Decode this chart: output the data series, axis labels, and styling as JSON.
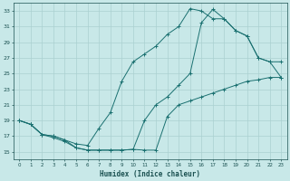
{
  "xlabel": "Humidex (Indice chaleur)",
  "xlim": [
    -0.5,
    23.5
  ],
  "ylim": [
    14.0,
    34.0
  ],
  "xticks": [
    0,
    1,
    2,
    3,
    4,
    5,
    6,
    7,
    8,
    9,
    10,
    11,
    12,
    13,
    14,
    15,
    16,
    17,
    18,
    19,
    20,
    21,
    22,
    23
  ],
  "yticks": [
    15,
    17,
    19,
    21,
    23,
    25,
    27,
    29,
    31,
    33
  ],
  "bg_color": "#c8e8e8",
  "grid_color": "#aad0d0",
  "line_color": "#1a7070",
  "line1_x": [
    0,
    1,
    2,
    3,
    4,
    5,
    6,
    7,
    8,
    9,
    10,
    11,
    12,
    13,
    14,
    15,
    16,
    17,
    18,
    19,
    20,
    21,
    22,
    23
  ],
  "line1_y": [
    19,
    18.5,
    17.2,
    16.8,
    16.3,
    15.5,
    15.2,
    15.2,
    15.2,
    15.2,
    15.3,
    15.2,
    15.2,
    19.5,
    21,
    21.5,
    22,
    22.5,
    23,
    23.5,
    24,
    24.2,
    24.5,
    24.5
  ],
  "line2_x": [
    0,
    1,
    2,
    3,
    4,
    5,
    6,
    7,
    8,
    9,
    10,
    11,
    12,
    13,
    14,
    15,
    16,
    17,
    18,
    19,
    20,
    21,
    22,
    23
  ],
  "line2_y": [
    19,
    18.5,
    17.2,
    17,
    16.5,
    16,
    15.8,
    18.0,
    20.0,
    24,
    26.5,
    27.5,
    28.5,
    30,
    31,
    33.3,
    33.0,
    32.0,
    32,
    30.5,
    29.8,
    27.0,
    26.5,
    26.5
  ],
  "line3_x": [
    0,
    1,
    2,
    3,
    4,
    5,
    6,
    7,
    8,
    9,
    10,
    11,
    12,
    13,
    14,
    15,
    16,
    17,
    18,
    19,
    20,
    21,
    22,
    23
  ],
  "line3_y": [
    19,
    18.5,
    17.2,
    17,
    16.5,
    15.5,
    15.2,
    15.2,
    15.2,
    15.2,
    15.3,
    19.0,
    21,
    22,
    23.5,
    25,
    31.5,
    33.2,
    32,
    30.5,
    29.8,
    27.0,
    26.5,
    24.5
  ]
}
